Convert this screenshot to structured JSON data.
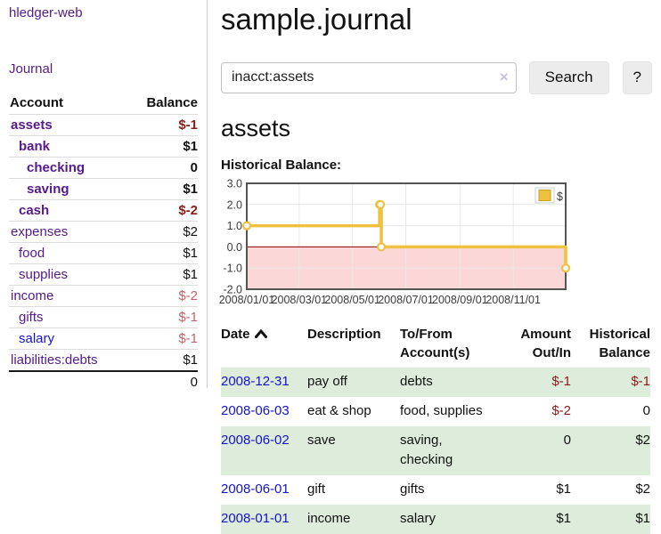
{
  "app": {
    "brand": "hledger-web"
  },
  "sidebar": {
    "journal_label": "Journal",
    "accounts_table": {
      "headers": {
        "account": "Account",
        "balance": "Balance"
      },
      "rows": [
        {
          "name": "assets",
          "balance": "$-1",
          "depth": 1,
          "bold": true,
          "balance_style": "negative-strong",
          "link_style": "purple"
        },
        {
          "name": "bank",
          "balance": "$1",
          "depth": 2,
          "bold": true,
          "balance_style": "normal",
          "link_style": "purple"
        },
        {
          "name": "checking",
          "balance": "0",
          "depth": 3,
          "bold": true,
          "balance_style": "normal",
          "link_style": "purple"
        },
        {
          "name": "saving",
          "balance": "$1",
          "depth": 3,
          "bold": true,
          "balance_style": "normal",
          "link_style": "purple"
        },
        {
          "name": "cash",
          "balance": "$-2",
          "depth": 2,
          "bold": true,
          "balance_style": "negative-strong",
          "link_style": "purple"
        },
        {
          "name": "expenses",
          "balance": "$2",
          "depth": 1,
          "bold": false,
          "balance_style": "normal",
          "link_style": "purple"
        },
        {
          "name": "food",
          "balance": "$1",
          "depth": 2,
          "bold": false,
          "balance_style": "normal",
          "link_style": "purple"
        },
        {
          "name": "supplies",
          "balance": "$1",
          "depth": 2,
          "bold": false,
          "balance_style": "normal",
          "link_style": "purple"
        },
        {
          "name": "income",
          "balance": "$-2",
          "depth": 1,
          "bold": false,
          "balance_style": "negative-soft",
          "link_style": "purple"
        },
        {
          "name": "gifts",
          "balance": "$-1",
          "depth": 2,
          "bold": false,
          "balance_style": "negative-soft",
          "link_style": "purple"
        },
        {
          "name": "salary",
          "balance": "$-1",
          "depth": 2,
          "bold": false,
          "balance_style": "negative-soft",
          "link_style": "blue"
        },
        {
          "name": "liabilities:debts",
          "balance": "$1",
          "depth": 1,
          "bold": false,
          "balance_style": "normal",
          "link_style": "purple"
        }
      ],
      "total": "0"
    }
  },
  "main": {
    "title": "sample.journal",
    "search": {
      "value": "inacct:assets",
      "clear_icon": "×",
      "button": "Search",
      "help_button": "?"
    },
    "account_heading": "assets"
  },
  "chart_data": {
    "type": "line",
    "title": "Historical Balance:",
    "style": "step",
    "legend": {
      "position": "top-right",
      "entries": [
        {
          "label": "$",
          "color": "#edc240"
        }
      ]
    },
    "series": [
      {
        "name": "$",
        "color": "#edc240",
        "points": [
          {
            "date": "2008-01-01",
            "day": 0,
            "value": 1
          },
          {
            "date": "2008-06-01",
            "day": 152,
            "value": 2
          },
          {
            "date": "2008-06-02",
            "day": 153,
            "value": 2
          },
          {
            "date": "2008-06-03",
            "day": 154,
            "value": 0
          },
          {
            "date": "2008-12-31",
            "day": 365,
            "value": -1
          }
        ]
      }
    ],
    "xlim": [
      0,
      365
    ],
    "ylim": [
      -2,
      3
    ],
    "yticks": [
      {
        "label": "3.0",
        "value": 3
      },
      {
        "label": "2.0",
        "value": 2
      },
      {
        "label": "1.0",
        "value": 1
      },
      {
        "label": "0.0",
        "value": 0
      },
      {
        "label": "-1.0",
        "value": -1
      },
      {
        "label": "-2.0",
        "value": -2
      }
    ],
    "xticks": [
      {
        "label": "2008/01/01",
        "day": 0
      },
      {
        "label": "2008/03/01",
        "day": 60
      },
      {
        "label": "2008/05/01",
        "day": 121
      },
      {
        "label": "2008/07/01",
        "day": 182
      },
      {
        "label": "2008/09/01",
        "day": 244
      },
      {
        "label": "2008/11/01",
        "day": 305
      }
    ],
    "grid": true,
    "negative_region": true,
    "colors": {
      "line": "#edc240",
      "marker_fill": "#ffffff",
      "negative_region": "#fbd7d7",
      "zero_line": "#8b0000",
      "grid": "#e8e8e8",
      "border": "#545454"
    }
  },
  "register_table": {
    "headers": [
      {
        "label": "Date",
        "align": "left",
        "sorted": "asc"
      },
      {
        "label": "Description",
        "align": "left"
      },
      {
        "label": "To/From Account(s)",
        "align": "left"
      },
      {
        "label": "Amount Out/In",
        "align": "right"
      },
      {
        "label": "Historical Balance",
        "align": "right"
      }
    ],
    "rows": [
      {
        "date": "2008-12-31",
        "description": "pay off",
        "accounts": "debts",
        "amount": "$-1",
        "amount_negative": true,
        "balance": "$-1",
        "balance_negative": true
      },
      {
        "date": "2008-06-03",
        "description": "eat & shop",
        "accounts": "food, supplies",
        "amount": "$-2",
        "amount_negative": true,
        "balance": "0",
        "balance_negative": false
      },
      {
        "date": "2008-06-02",
        "description": "save",
        "accounts": "saving, checking",
        "amount": "0",
        "amount_negative": false,
        "balance": "$2",
        "balance_negative": false
      },
      {
        "date": "2008-06-01",
        "description": "gift",
        "accounts": "gifts",
        "amount": "$1",
        "amount_negative": false,
        "balance": "$2",
        "balance_negative": false
      },
      {
        "date": "2008-01-01",
        "description": "income",
        "accounts": "salary",
        "amount": "$1",
        "amount_negative": false,
        "balance": "$1",
        "balance_negative": false
      }
    ]
  }
}
